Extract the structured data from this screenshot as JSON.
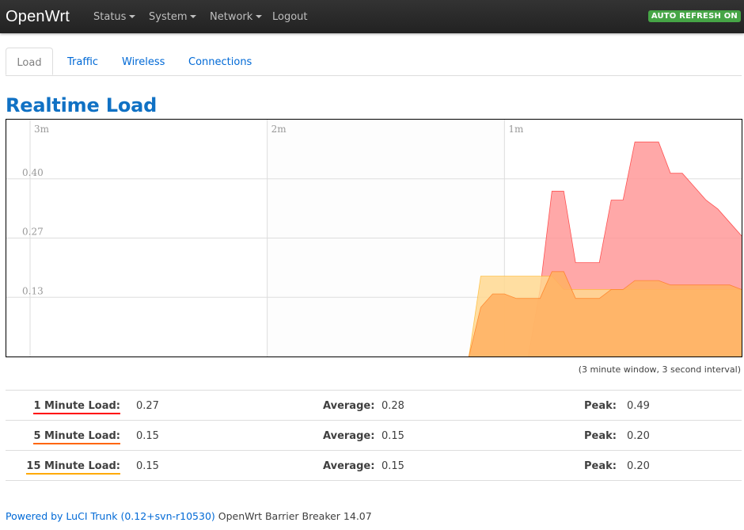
{
  "header": {
    "brand": "OpenWrt",
    "menu": [
      {
        "label": "Status",
        "dropdown": true
      },
      {
        "label": "System",
        "dropdown": true
      },
      {
        "label": "Network",
        "dropdown": true
      },
      {
        "label": "Logout",
        "dropdown": false
      }
    ],
    "refresh_badge": "AUTO REFRESH ON"
  },
  "tabs": [
    {
      "label": "Load",
      "active": true
    },
    {
      "label": "Traffic",
      "active": false
    },
    {
      "label": "Wireless",
      "active": false
    },
    {
      "label": "Connections",
      "active": false
    }
  ],
  "page_title": "Realtime Load",
  "chart_data": {
    "type": "area",
    "x_unit": "seconds ago",
    "x_ticks": [
      "3m",
      "2m",
      "1m"
    ],
    "y_ticks": [
      "0.40",
      "0.27",
      "0.13"
    ],
    "ylim": [
      0,
      0.53
    ],
    "grid": true,
    "x": [
      180,
      168,
      159,
      156,
      153,
      150,
      147,
      144,
      141,
      138,
      135,
      132,
      129,
      126,
      123,
      120,
      117,
      114,
      111,
      108,
      105,
      102,
      99,
      96,
      93,
      90,
      87,
      84,
      81,
      78,
      75,
      72,
      69,
      66,
      63,
      60,
      57,
      54,
      51,
      48,
      45,
      42,
      39,
      36,
      33,
      30,
      27,
      24,
      21,
      18,
      15,
      12,
      9,
      6,
      3,
      0
    ],
    "series": [
      {
        "name": "1 Minute Load",
        "color": "#ff0000",
        "fill": "#ff9999",
        "values": [
          null,
          null,
          null,
          null,
          null,
          null,
          null,
          null,
          null,
          null,
          null,
          null,
          null,
          null,
          null,
          null,
          null,
          null,
          null,
          null,
          null,
          null,
          null,
          null,
          null,
          null,
          null,
          null,
          null,
          null,
          null,
          null,
          null,
          null,
          0.0,
          0.0,
          0.0,
          0.0,
          0.15,
          0.37,
          0.37,
          0.21,
          0.21,
          0.21,
          0.35,
          0.35,
          0.48,
          0.48,
          0.48,
          0.41,
          0.41,
          0.38,
          0.35,
          0.33,
          0.3,
          0.27
        ]
      },
      {
        "name": "5 Minute Load",
        "color": "#ff6600",
        "fill": "#ffb061",
        "values": [
          null,
          null,
          null,
          null,
          null,
          null,
          null,
          null,
          null,
          null,
          null,
          null,
          null,
          null,
          null,
          null,
          null,
          null,
          null,
          null,
          null,
          null,
          null,
          null,
          null,
          null,
          null,
          null,
          null,
          null,
          null,
          null,
          0.0,
          0.11,
          0.14,
          0.14,
          0.13,
          0.13,
          0.13,
          0.19,
          0.19,
          0.13,
          0.13,
          0.13,
          0.15,
          0.15,
          0.17,
          0.17,
          0.17,
          0.16,
          0.16,
          0.16,
          0.16,
          0.16,
          0.16,
          0.15
        ]
      },
      {
        "name": "15 Minute Load",
        "color": "#ffaa00",
        "fill": "#ffd890",
        "values": [
          null,
          null,
          null,
          null,
          null,
          null,
          null,
          null,
          null,
          null,
          null,
          null,
          null,
          null,
          null,
          null,
          null,
          null,
          null,
          null,
          null,
          null,
          null,
          null,
          null,
          null,
          null,
          null,
          null,
          null,
          null,
          null,
          0.0,
          0.18,
          0.18,
          0.18,
          0.18,
          0.18,
          0.18,
          0.18,
          0.15,
          0.15,
          0.15,
          0.15,
          0.15,
          0.15,
          0.15,
          0.15,
          0.15,
          0.15,
          0.15,
          0.15,
          0.15,
          0.15,
          0.15,
          0.15
        ]
      }
    ]
  },
  "interval_note": "(3 minute window, 3 second interval)",
  "stats": [
    {
      "label": "1 Minute Load:",
      "color": "#ff0000",
      "value": "0.27",
      "avg_label": "Average:",
      "average": "0.28",
      "peak_label": "Peak:",
      "peak": "0.49"
    },
    {
      "label": "5 Minute Load:",
      "color": "#ff6600",
      "value": "0.15",
      "avg_label": "Average:",
      "average": "0.15",
      "peak_label": "Peak:",
      "peak": "0.20"
    },
    {
      "label": "15 Minute Load:",
      "color": "#ffaa00",
      "value": "0.15",
      "avg_label": "Average:",
      "average": "0.15",
      "peak_label": "Peak:",
      "peak": "0.20"
    }
  ],
  "footer": {
    "link": "Powered by LuCI Trunk (0.12+svn-r10530)",
    "text": " OpenWrt Barrier Breaker 14.07"
  }
}
